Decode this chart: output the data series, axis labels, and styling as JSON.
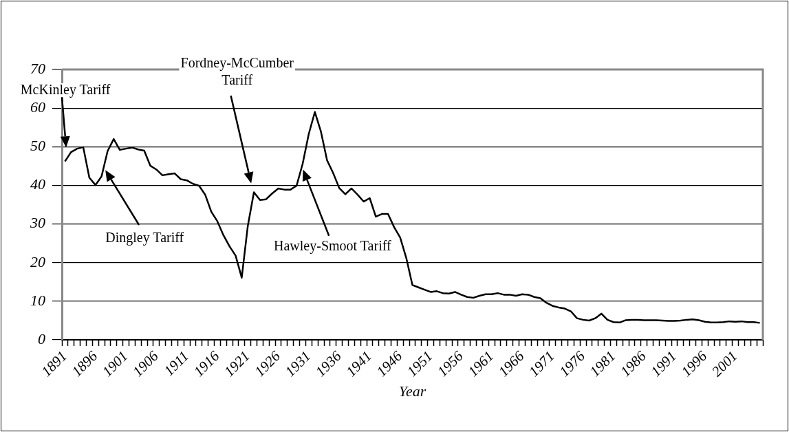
{
  "chart_data": {
    "type": "line",
    "xlabel": "Year",
    "categories": [
      "1891",
      null,
      null,
      null,
      null,
      "1896",
      null,
      null,
      null,
      null,
      "1901",
      null,
      null,
      null,
      null,
      "1906",
      null,
      null,
      null,
      null,
      "1911",
      null,
      null,
      null,
      null,
      "1916",
      null,
      null,
      null,
      null,
      "1921",
      null,
      null,
      null,
      null,
      "1926",
      null,
      null,
      null,
      null,
      "1931",
      null,
      null,
      null,
      null,
      "1936",
      null,
      null,
      null,
      null,
      "1941",
      null,
      null,
      null,
      null,
      "1946",
      null,
      null,
      null,
      null,
      "1951",
      null,
      null,
      null,
      null,
      "1956",
      null,
      null,
      null,
      null,
      "1961",
      null,
      null,
      null,
      null,
      "1966",
      null,
      null,
      null,
      null,
      "1971",
      null,
      null,
      null,
      null,
      "1976",
      null,
      null,
      null,
      null,
      "1981",
      null,
      null,
      null,
      null,
      "1986",
      null,
      null,
      null,
      null,
      "1991",
      null,
      null,
      null,
      null,
      "1996",
      null,
      null,
      null,
      null,
      "2001",
      null,
      null,
      null,
      null
    ],
    "series": [
      {
        "color": "#000000",
        "values": [
          46.2,
          48.6,
          49.5,
          49.9,
          42.0,
          40.1,
          42.3,
          48.9,
          52.0,
          49.2,
          49.5,
          49.8,
          49.3,
          49.0,
          45.1,
          44.1,
          42.6,
          42.9,
          43.1,
          41.6,
          41.3,
          40.4,
          39.9,
          37.6,
          33.2,
          30.7,
          27.1,
          24.2,
          21.8,
          16.1,
          29.5,
          38.2,
          36.2,
          36.4,
          37.9,
          39.2,
          38.9,
          38.9,
          39.9,
          45.6,
          53.3,
          59.0,
          53.9,
          46.5,
          43.2,
          39.3,
          37.7,
          39.2,
          37.6,
          35.8,
          36.7,
          31.9,
          32.6,
          32.6,
          29.2,
          26.5,
          21.2,
          14.2,
          13.6,
          13.0,
          12.4,
          12.6,
          12.1,
          12.0,
          12.4,
          11.7,
          11.1,
          10.9,
          11.4,
          11.8,
          11.8,
          12.1,
          11.7,
          11.7,
          11.4,
          11.8,
          11.7,
          11.1,
          10.8,
          9.6,
          8.8,
          8.4,
          8.1,
          7.4,
          5.6,
          5.2,
          5.0,
          5.6,
          6.8,
          5.2,
          4.6,
          4.5,
          5.1,
          5.2,
          5.2,
          5.1,
          5.1,
          5.1,
          5.0,
          4.9,
          4.9,
          5.0,
          5.2,
          5.3,
          5.1,
          4.7,
          4.5,
          4.5,
          4.6,
          4.8,
          4.7,
          4.8,
          4.6,
          4.6,
          4.4
        ]
      }
    ],
    "ylim": [
      0,
      70
    ],
    "yticks": [
      0,
      10,
      20,
      30,
      40,
      50,
      60,
      70
    ],
    "grid": "y",
    "legend": false,
    "marker": "none",
    "line_style": "solid",
    "annotations": [
      "McKinley Tariff",
      "Dingley Tariff",
      "Fordney-McCumber Tariff",
      "Hawley-Smoot Tariff"
    ]
  }
}
